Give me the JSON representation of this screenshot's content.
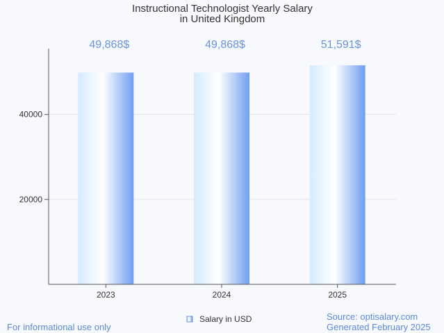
{
  "chart_data": {
    "type": "bar",
    "title_lines": [
      "Instructional Technologist Yearly Salary",
      "in United Kingdom"
    ],
    "categories": [
      "2023",
      "2024",
      "2025"
    ],
    "series": [
      {
        "name": "Salary in USD",
        "values": [
          49868,
          49868,
          51591
        ]
      }
    ],
    "data_labels": [
      "49,868$",
      "49,868$",
      "51,591$"
    ],
    "yticks": [
      20000,
      40000
    ],
    "ytick_labels": [
      "20000",
      "40000"
    ],
    "ylim": [
      0,
      55500
    ],
    "xlabel": "",
    "ylabel": "",
    "legend_position": "bottom-center",
    "grid": true
  },
  "footer": {
    "left": "For informational use only",
    "source": "Source: optisalary.com",
    "generated": "Generated February 2025"
  },
  "colors": {
    "bar_light": "#d6ebff",
    "bar_mid": "#ffffff",
    "bar_dark": "#6f9ef0",
    "label": "#6a93d8",
    "footer": "#5b8bd6",
    "axis": "#555555",
    "grid": "#e3e3e3"
  }
}
